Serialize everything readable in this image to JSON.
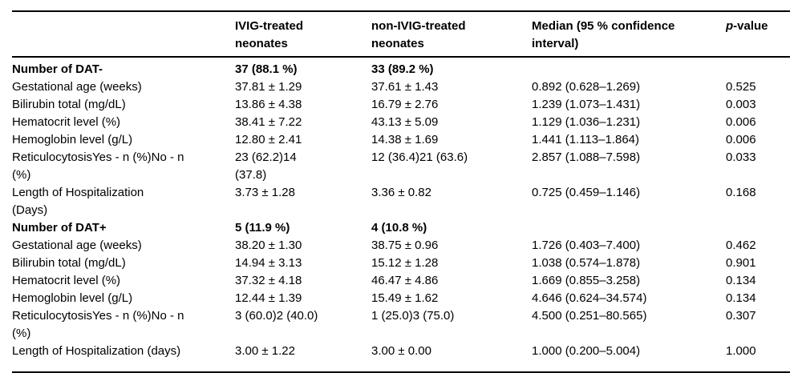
{
  "table": {
    "header": {
      "label": "",
      "ivig": "IVIG-treated\nneonates",
      "nonivig": "non-IVIG-treated\nneonates",
      "median": "Median (95 % confidence\ninterval)",
      "pvalue_italic": "p",
      "pvalue_rest": "-value"
    },
    "rows": [
      {
        "label": "Number of DAT-",
        "ivig": "37 (88.1 %)",
        "nonivig": "33 (89.2 %)",
        "median": "",
        "p": ""
      },
      {
        "label": "Gestational age (weeks)",
        "ivig": "37.81 ± 1.29",
        "nonivig": "37.61 ± 1.43",
        "median": "0.892 (0.628–1.269)",
        "p": "0.525"
      },
      {
        "label": "Bilirubin total (mg/dL)",
        "ivig": "13.86 ± 4.38",
        "nonivig": "16.79 ± 2.76",
        "median": "1.239 (1.073–1.431)",
        "p": "0.003"
      },
      {
        "label": "Hematocrit level (%)",
        "ivig": "38.41 ± 7.22",
        "nonivig": "43.13 ± 5.09",
        "median": "1.129 (1.036–1.231)",
        "p": "0.006"
      },
      {
        "label": "Hemoglobin level (g/L)",
        "ivig": "12.80 ± 2.41",
        "nonivig": "14.38 ± 1.69",
        "median": "1.441 (1.113–1.864)",
        "p": "0.006"
      },
      {
        "label": "ReticulocytosisYes - n (%)No - n\n(%)",
        "ivig": "23 (62.2)14\n(37.8)",
        "nonivig": "12 (36.4)21 (63.6)",
        "median": "2.857 (1.088–7.598)",
        "p": "0.033"
      },
      {
        "label": "Length of Hospitalization\n(Days)",
        "ivig": "3.73 ± 1.28",
        "nonivig": "3.36 ± 0.82",
        "median": "0.725 (0.459–1.146)",
        "p": "0.168"
      },
      {
        "label": "Number of DAT+",
        "ivig": "5 (11.9 %)",
        "nonivig": "4 (10.8 %)",
        "median": "",
        "p": ""
      },
      {
        "label": "Gestational age (weeks)",
        "ivig": "38.20 ± 1.30",
        "nonivig": "38.75 ± 0.96",
        "median": "1.726 (0.403–7.400)",
        "p": "0.462"
      },
      {
        "label": "Bilirubin total (mg/dL)",
        "ivig": "14.94 ± 3.13",
        "nonivig": "15.12 ± 1.28",
        "median": "1.038 (0.574–1.878)",
        "p": "0.901"
      },
      {
        "label": "Hematocrit level (%)",
        "ivig": "37.32 ± 4.18",
        "nonivig": "46.47 ± 4.86",
        "median": "1.669 (0.855–3.258)",
        "p": "0.134"
      },
      {
        "label": "Hemoglobin level (g/L)",
        "ivig": "12.44 ± 1.39",
        "nonivig": "15.49 ± 1.62",
        "median": "4.646 (0.624–34.574)",
        "p": "0.134"
      },
      {
        "label": "ReticulocytosisYes - n (%)No - n\n(%)",
        "ivig": "3 (60.0)2 (40.0)",
        "nonivig": "1 (25.0)3 (75.0)",
        "median": "4.500 (0.251–80.565)",
        "p": "0.307"
      },
      {
        "label": "Length of Hospitalization (days)",
        "ivig": "3.00 ± 1.22",
        "nonivig": "3.00 ± 0.00",
        "median": "1.000 (0.200–5.004)",
        "p": "1.000"
      }
    ]
  }
}
